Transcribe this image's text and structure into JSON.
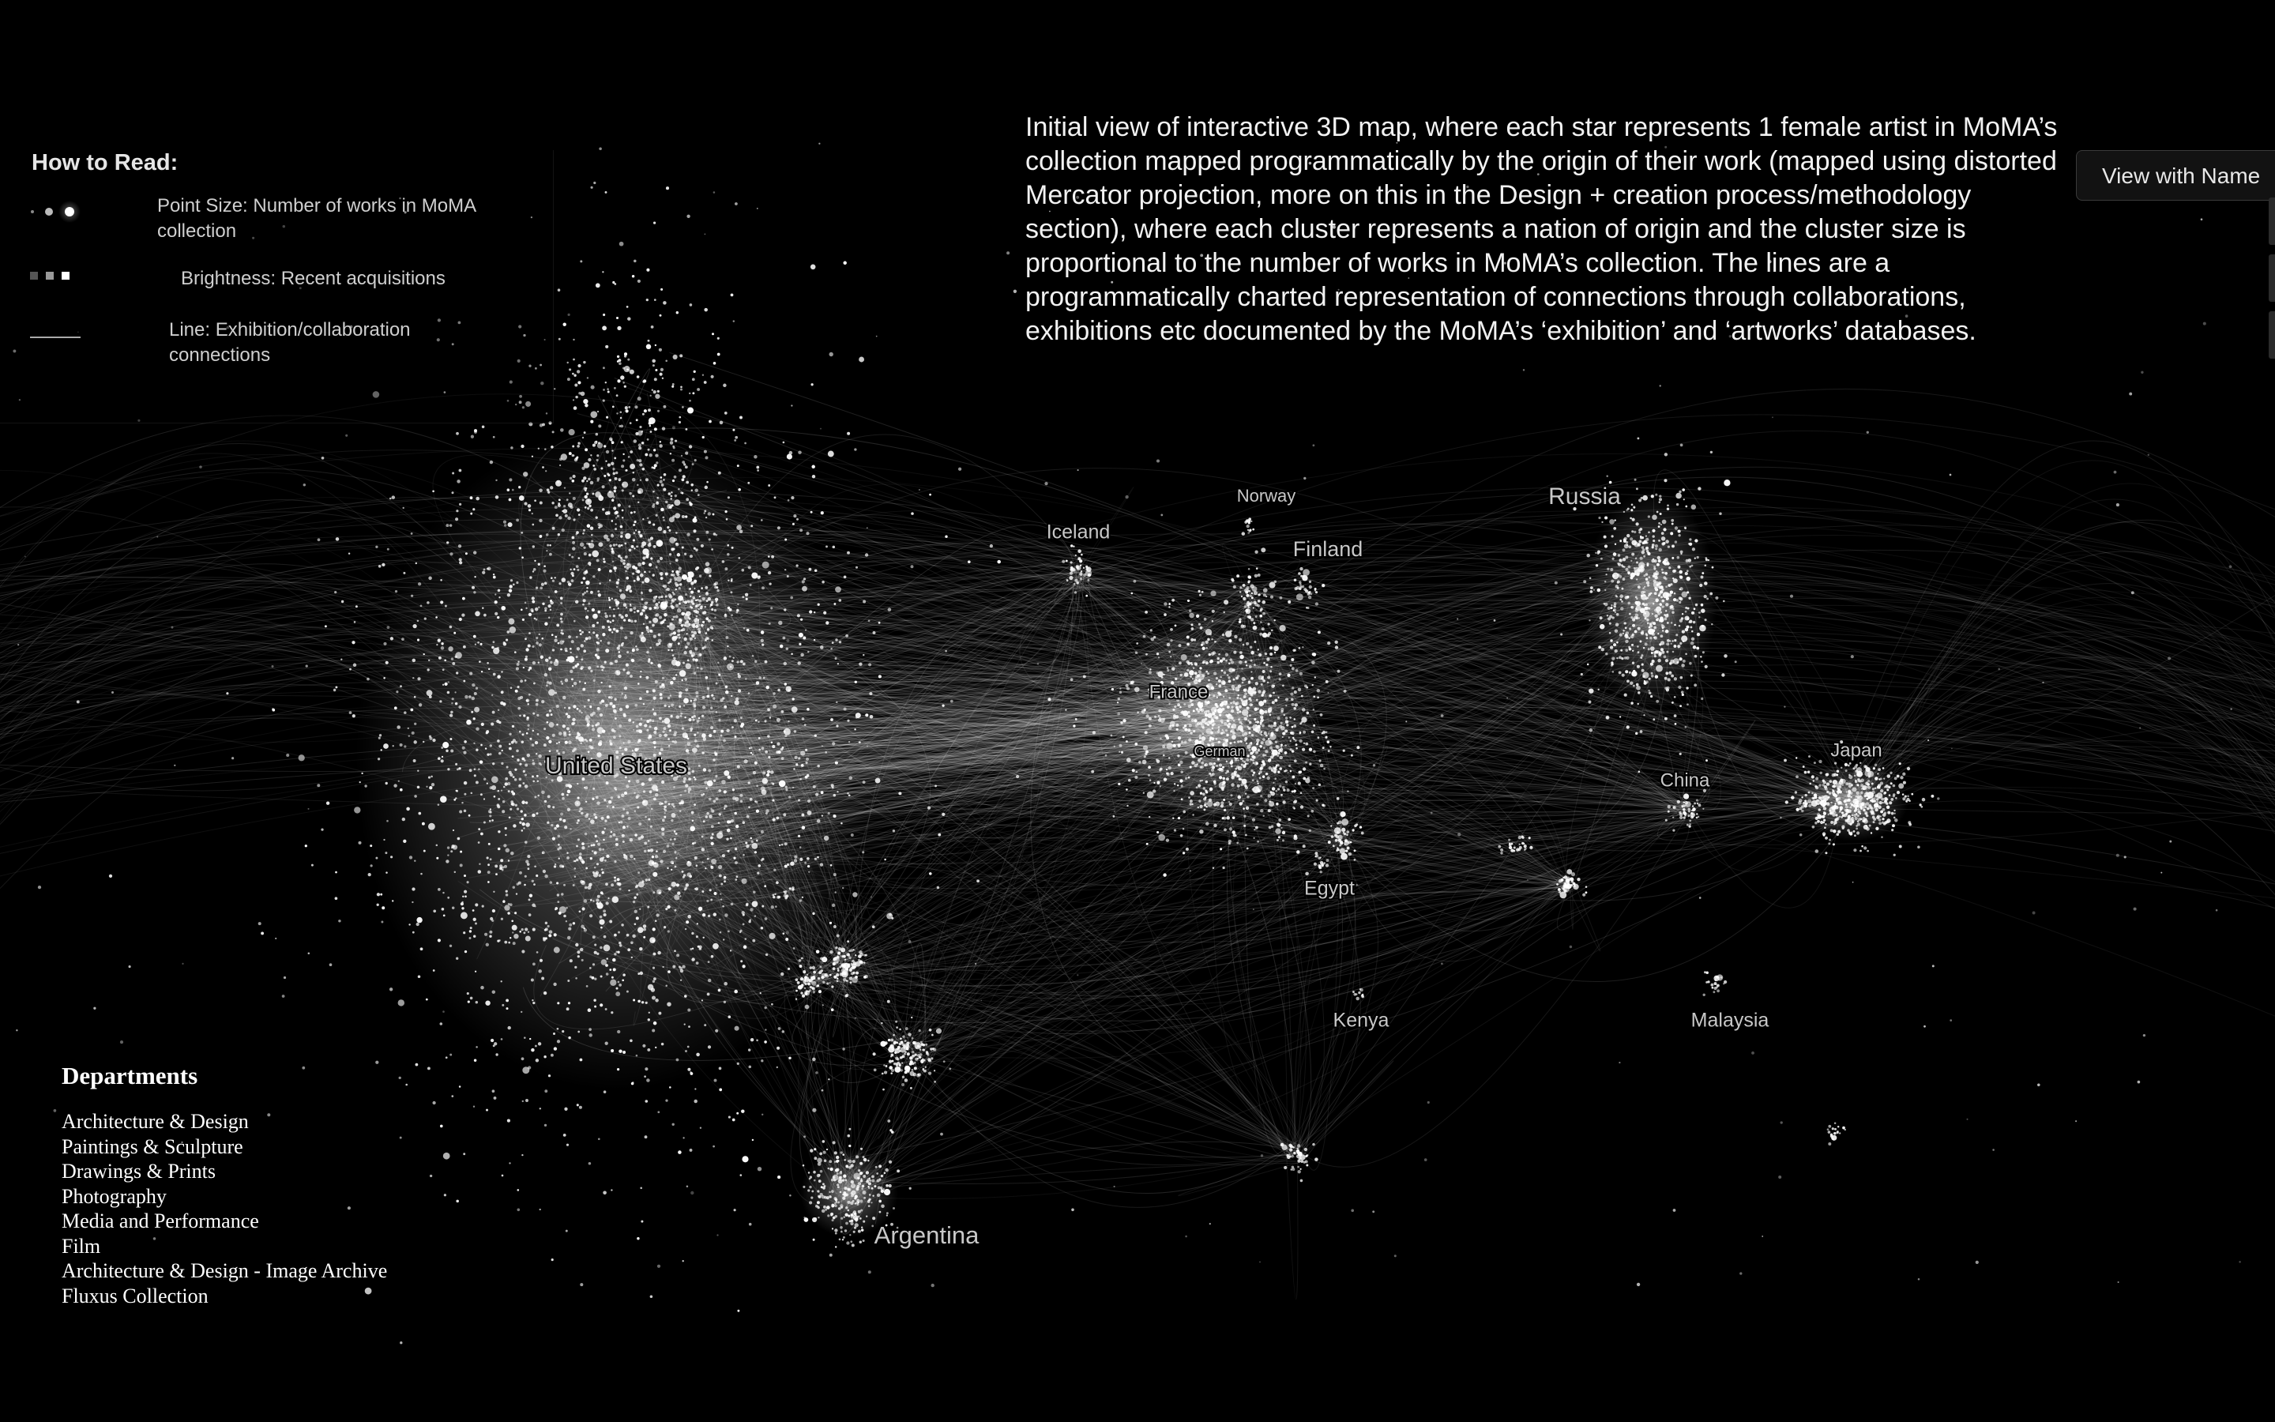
{
  "legend": {
    "title": "How to Read:",
    "items": [
      {
        "icon": "point-size-icon",
        "label": "Point Size: Number of works in MoMA collection"
      },
      {
        "icon": "brightness-icon",
        "label": "Brightness: Recent acquisitions"
      },
      {
        "icon": "line-icon",
        "label": "Line: Exhibition/collaboration connections"
      }
    ]
  },
  "description": "Initial view of interactive 3D map, where each star represents 1 female artist in MoMA’s collection mapped programmatically by the origin of their work (mapped using distorted Mercator projection, more on this in the Design + creation process/methodology section), where each cluster represents a nation of origin and the cluster size is proportional to the number of works in MoMA’s collection. The lines are a programmatically charted representation of connections through collaborations, exhibitions etc documented by the MoMA’s ‘exhibition’ and ‘artworks’ databases.",
  "view_button": {
    "label": "View with Name"
  },
  "departments": {
    "title": "Departments",
    "items": [
      "Architecture & Design",
      "Paintings & Sculpture",
      "Drawings & Prints",
      "Photography",
      "Media and Performance",
      "Film",
      "Architecture & Design - Image Archive",
      "Fluxus Collection"
    ]
  },
  "map_labels": [
    "United States",
    "France",
    "German",
    "Iceland",
    "Norway",
    "Finland",
    "Russia",
    "China",
    "Japan",
    "Egypt",
    "Kenya",
    "Malaysia",
    "Argentina"
  ],
  "colors": {
    "background": "#000000",
    "star": "#ffffff",
    "label": "#c8c8c8"
  }
}
